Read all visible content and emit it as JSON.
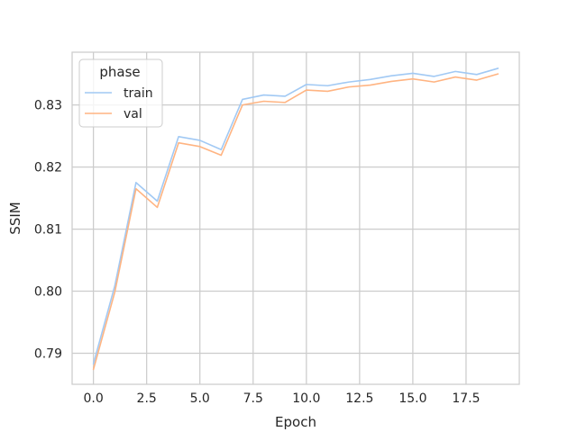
{
  "chart_data": {
    "type": "line",
    "title": "",
    "xlabel": "Epoch",
    "ylabel": "SSIM",
    "xlim": [
      -1.0,
      20.0
    ],
    "ylim": [
      0.785,
      0.8385
    ],
    "xticks": [
      0.0,
      2.5,
      5.0,
      7.5,
      10.0,
      12.5,
      15.0,
      17.5
    ],
    "xtick_labels": [
      "0.0",
      "2.5",
      "5.0",
      "7.5",
      "10.0",
      "12.5",
      "15.0",
      "17.5"
    ],
    "yticks": [
      0.79,
      0.8,
      0.81,
      0.82,
      0.83
    ],
    "ytick_labels": [
      "0.79",
      "0.80",
      "0.81",
      "0.82",
      "0.83"
    ],
    "grid": true,
    "legend": {
      "title": "phase",
      "placement": "top-left"
    },
    "x": [
      0,
      1,
      2,
      3,
      4,
      5,
      6,
      7,
      8,
      9,
      10,
      11,
      12,
      13,
      14,
      15,
      16,
      17,
      18,
      19
    ],
    "series": [
      {
        "name": "train",
        "color": "#a1c9f4",
        "values": [
          0.7883,
          0.8008,
          0.8175,
          0.8145,
          0.8249,
          0.8243,
          0.8228,
          0.8309,
          0.8316,
          0.8314,
          0.8333,
          0.8331,
          0.8337,
          0.8341,
          0.8347,
          0.8351,
          0.8346,
          0.8354,
          0.8349,
          0.8359
        ]
      },
      {
        "name": "val",
        "color": "#ffb482",
        "values": [
          0.7874,
          0.7998,
          0.8165,
          0.8135,
          0.8239,
          0.8233,
          0.8219,
          0.83,
          0.8306,
          0.8304,
          0.8324,
          0.8322,
          0.8329,
          0.8332,
          0.8338,
          0.8342,
          0.8337,
          0.8345,
          0.834,
          0.835
        ]
      }
    ]
  }
}
